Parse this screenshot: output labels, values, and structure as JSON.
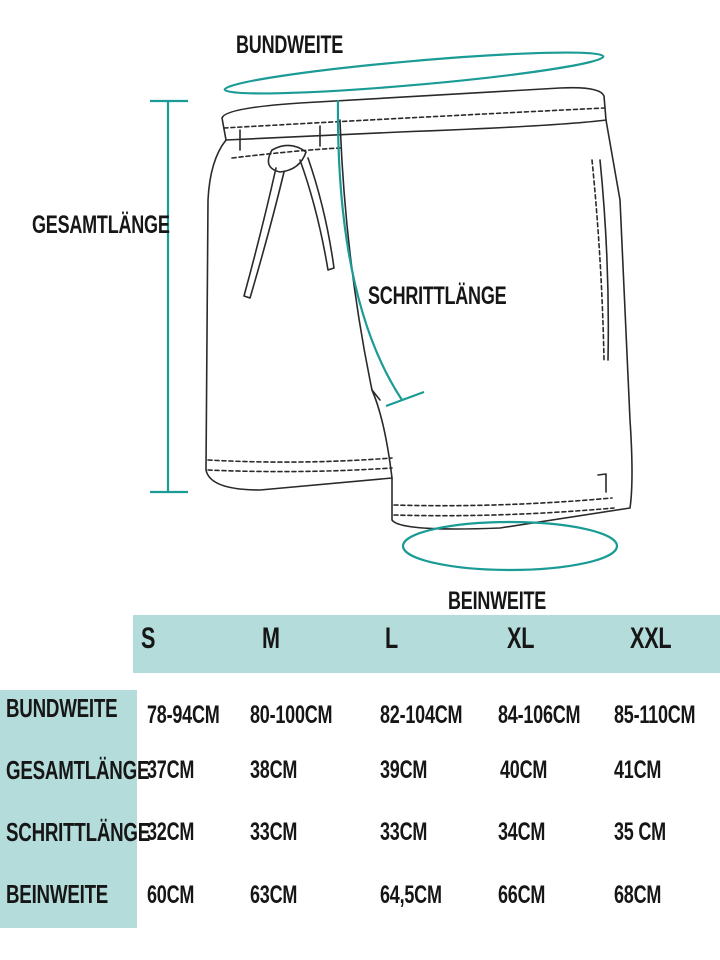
{
  "diagram": {
    "labels": {
      "waist": "BUNDWEITE",
      "total_length": "GESAMTLÄNGE",
      "inseam": "SCHRITTLÄNGE",
      "leg_width": "BEINWEITE"
    },
    "accent_color": "#1a9b95",
    "table_color": "#b3dcdb"
  },
  "table": {
    "sizes": [
      "S",
      "M",
      "L",
      "XL",
      "XXL"
    ],
    "rows": [
      {
        "label": "BUNDWEITE",
        "values": [
          "78-94CM",
          "80-100CM",
          "82-104CM",
          "84-106CM",
          "85-110CM"
        ]
      },
      {
        "label": "GESAMTLÄNGE",
        "values": [
          "37CM",
          "38CM",
          "39CM",
          "40CM",
          "41CM"
        ]
      },
      {
        "label": "SCHRITTLÄNGE",
        "values": [
          "32CM",
          "33CM",
          "33CM",
          "34CM",
          "35 CM"
        ]
      },
      {
        "label": "BEINWEITE",
        "values": [
          "60CM",
          "63CM",
          "64,5CM",
          "66CM",
          "68CM"
        ]
      }
    ]
  }
}
